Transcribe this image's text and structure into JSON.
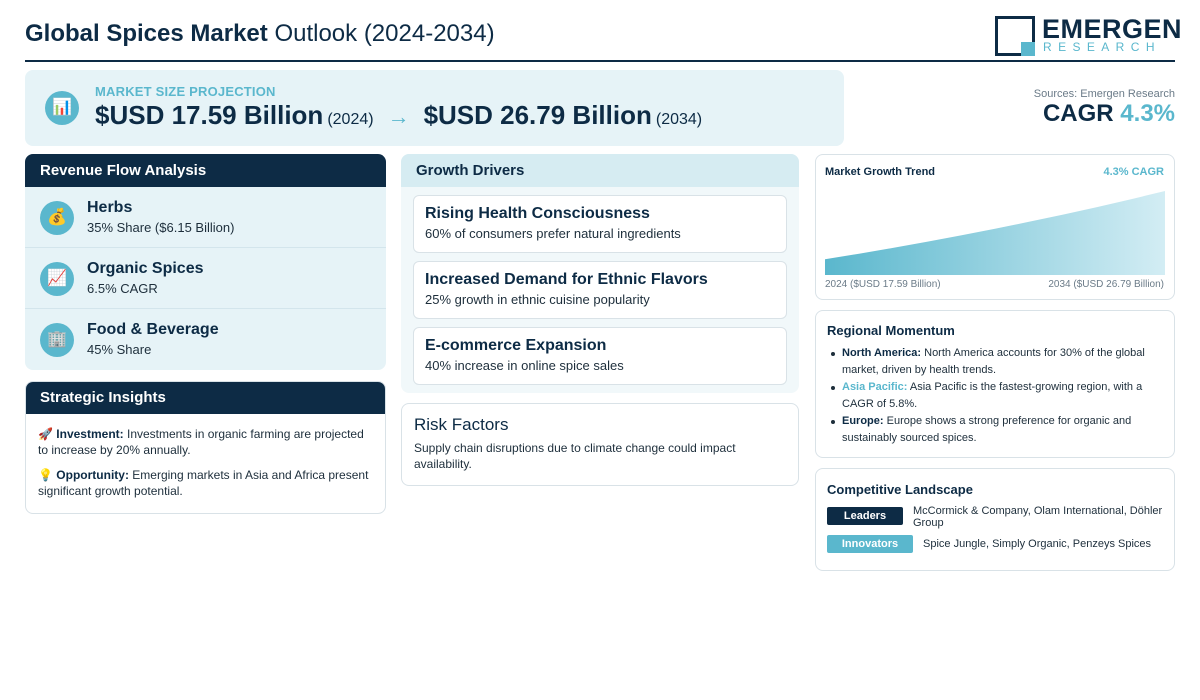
{
  "header": {
    "title_bold": "Global Spices Market",
    "title_rest": "Outlook (2024-2034)",
    "logo_main": "EMERGEN",
    "logo_sub": "RESEARCH"
  },
  "projection": {
    "icon": "bar-chart-icon",
    "label": "MARKET SIZE PROJECTION",
    "start_value": "$USD 17.59 Billion",
    "start_year": "(2024)",
    "arrow": "→",
    "end_value": "$USD 26.79 Billion",
    "end_year": "(2034)"
  },
  "sources": "Sources: Emergen Research",
  "cagr": {
    "label": "CAGR",
    "value": "4.3%"
  },
  "revenue": {
    "title": "Revenue Flow Analysis",
    "items": [
      {
        "icon": "money-bag-icon",
        "glyph": "💰",
        "title": "Herbs",
        "subtitle": "35% Share ($6.15 Billion)"
      },
      {
        "icon": "trend-up-icon",
        "glyph": "📈",
        "title": "Organic Spices",
        "subtitle": "6.5% CAGR"
      },
      {
        "icon": "building-icon",
        "glyph": "🏢",
        "title": "Food & Beverage",
        "subtitle": "45% Share"
      }
    ]
  },
  "insights": {
    "title": "Strategic Insights",
    "items": [
      {
        "icon": "rocket-icon",
        "glyph": "🚀",
        "label": "Investment:",
        "text": "Investments in organic farming are projected to increase by 20% annually."
      },
      {
        "icon": "light-bulb-icon",
        "glyph": "💡",
        "label": "Opportunity:",
        "text": "Emerging markets in Asia and Africa present significant growth potential."
      }
    ]
  },
  "drivers": {
    "title": "Growth Drivers",
    "items": [
      {
        "title": "Rising Health Consciousness",
        "subtitle": "60% of consumers prefer natural ingredients"
      },
      {
        "title": "Increased Demand for Ethnic Flavors",
        "subtitle": "25% growth in ethnic cuisine popularity"
      },
      {
        "title": "E-commerce Expansion",
        "subtitle": "40% increase in online spice sales"
      }
    ]
  },
  "risk": {
    "title": "Risk Factors",
    "text": "Supply chain disruptions due to climate change could impact availability."
  },
  "trend": {
    "title": "Market Growth Trend",
    "cagr_label": "4.3% CAGR",
    "start_label": "2024 ($USD 17.59 Billion)",
    "end_label": "2034 ($USD 26.79 Billion)"
  },
  "chart_data": {
    "type": "area",
    "x": [
      "2024",
      "2034"
    ],
    "series": [
      {
        "values": [
          17.59,
          26.79
        ]
      }
    ],
    "xlabel": "",
    "ylabel": "",
    "grid": false
  },
  "regional": {
    "title": "Regional Momentum",
    "items": [
      {
        "name": "North America:",
        "accent": false,
        "text": "North America accounts for 30% of the global market, driven by health trends."
      },
      {
        "name": "Asia Pacific:",
        "accent": true,
        "text": "Asia Pacific is the fastest-growing region, with a CAGR of 5.8%."
      },
      {
        "name": "Europe:",
        "accent": false,
        "text": "Europe shows a strong preference for organic and sustainably sourced spices."
      }
    ]
  },
  "competitive": {
    "title": "Competitive Landscape",
    "leaders_label": "Leaders",
    "leaders": "McCormick & Company, Olam International, Döhler Group",
    "innovators_label": "Innovators",
    "innovators": "Spice Jungle, Simply Organic, Penzeys Spices"
  },
  "colors": {
    "navy": "#0d2b45",
    "accent": "#5ab7cd",
    "panel": "#e6f3f7"
  }
}
